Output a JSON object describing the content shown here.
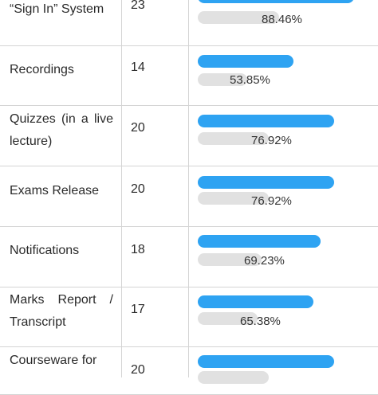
{
  "accent": "#2ea3f2",
  "track_color": "#e1e1e1",
  "rows": [
    {
      "feature": "“Sign In” System",
      "count": "23",
      "percent_label": "88.46%",
      "fraction": 0.8846
    },
    {
      "feature": "Recordings",
      "count": "14",
      "percent_label": "53.85%",
      "fraction": 0.5385
    },
    {
      "feature": "Quizzes (in a live lecture)",
      "count": "20",
      "percent_label": "76.92%",
      "fraction": 0.7692
    },
    {
      "feature": "Exams Release",
      "count": "20",
      "percent_label": "76.92%",
      "fraction": 0.7692
    },
    {
      "feature": "Notifications",
      "count": "18",
      "percent_label": "69.23%",
      "fraction": 0.6923
    },
    {
      "feature": "Marks Report / Transcript",
      "count": "17",
      "percent_label": "65.38%",
      "fraction": 0.6538
    },
    {
      "feature": "Courseware for",
      "count": "20",
      "percent_label": "",
      "fraction": 0.7692
    }
  ]
}
